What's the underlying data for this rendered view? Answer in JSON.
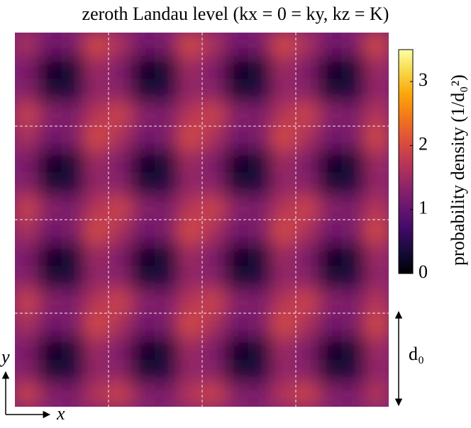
{
  "chart_data": {
    "type": "heatmap",
    "title": "zeroth Landau level (kx = 0 = ky, kz = K)",
    "x_label": "x",
    "y_label": "y",
    "scale_label": "d₀",
    "colorbar_label": "probability density (1/d₀²)",
    "colormap": "inferno",
    "clim": [
      0,
      3.5
    ],
    "cticks": [
      0,
      1,
      2,
      3
    ],
    "z": [
      [
        1.6,
        1.1,
        1.2,
        2.0,
        1.6,
        1.1,
        1.2,
        2.0,
        1.6,
        1.1,
        1.2,
        2.0,
        1.6,
        1.1,
        1.2,
        2.0
      ],
      [
        1.2,
        0.2,
        0.3,
        1.5,
        1.2,
        0.2,
        0.3,
        1.5,
        1.2,
        0.2,
        0.3,
        1.5,
        1.2,
        0.2,
        0.3,
        1.5
      ],
      [
        1.3,
        0.3,
        0.4,
        1.4,
        1.3,
        0.3,
        0.4,
        1.4,
        1.3,
        0.3,
        0.4,
        1.4,
        1.3,
        0.3,
        0.4,
        1.4
      ],
      [
        1.9,
        1.3,
        1.2,
        1.7,
        1.9,
        1.3,
        1.2,
        1.7,
        1.9,
        1.3,
        1.2,
        1.7,
        1.9,
        1.3,
        1.2,
        1.7
      ],
      [
        1.6,
        1.1,
        1.2,
        2.0,
        1.6,
        1.1,
        1.2,
        2.0,
        1.6,
        1.1,
        1.2,
        2.0,
        1.6,
        1.1,
        1.2,
        2.0
      ],
      [
        1.2,
        0.2,
        0.3,
        1.5,
        1.2,
        0.2,
        0.3,
        1.5,
        1.2,
        0.2,
        0.3,
        1.5,
        1.2,
        0.2,
        0.3,
        1.5
      ],
      [
        1.3,
        0.3,
        0.4,
        1.4,
        1.3,
        0.3,
        0.4,
        1.4,
        1.3,
        0.3,
        0.4,
        1.4,
        1.3,
        0.3,
        0.4,
        1.4
      ],
      [
        1.9,
        1.3,
        1.2,
        1.7,
        1.9,
        1.3,
        1.2,
        1.7,
        1.9,
        1.3,
        1.2,
        1.7,
        1.9,
        1.3,
        1.2,
        1.7
      ],
      [
        1.6,
        1.1,
        1.2,
        2.0,
        1.6,
        1.1,
        1.2,
        2.0,
        1.6,
        1.1,
        1.2,
        2.0,
        1.6,
        1.1,
        1.2,
        2.0
      ],
      [
        1.2,
        0.2,
        0.3,
        1.5,
        1.2,
        0.2,
        0.3,
        1.5,
        1.2,
        0.2,
        0.3,
        1.5,
        1.2,
        0.2,
        0.3,
        1.5
      ],
      [
        1.3,
        0.3,
        0.4,
        1.4,
        1.3,
        0.3,
        0.4,
        1.4,
        1.3,
        0.3,
        0.4,
        1.4,
        1.3,
        0.3,
        0.4,
        1.4
      ],
      [
        1.9,
        1.3,
        1.2,
        1.7,
        1.9,
        1.3,
        1.2,
        1.7,
        1.9,
        1.3,
        1.2,
        1.7,
        1.9,
        1.3,
        1.2,
        1.7
      ],
      [
        1.6,
        1.1,
        1.2,
        2.0,
        1.6,
        1.1,
        1.2,
        2.0,
        1.6,
        1.1,
        1.2,
        2.0,
        1.6,
        1.1,
        1.2,
        2.0
      ],
      [
        1.2,
        0.2,
        0.3,
        1.5,
        1.2,
        0.2,
        0.3,
        1.5,
        1.2,
        0.2,
        0.3,
        1.5,
        1.2,
        0.2,
        0.3,
        1.5
      ],
      [
        1.3,
        0.3,
        0.4,
        1.4,
        1.3,
        0.3,
        0.4,
        1.4,
        1.3,
        0.3,
        0.4,
        1.4,
        1.3,
        0.3,
        0.4,
        1.4
      ],
      [
        1.9,
        1.3,
        1.2,
        1.7,
        1.9,
        1.3,
        1.2,
        1.7,
        1.9,
        1.3,
        1.2,
        1.7,
        1.9,
        1.3,
        1.2,
        1.7
      ]
    ]
  }
}
